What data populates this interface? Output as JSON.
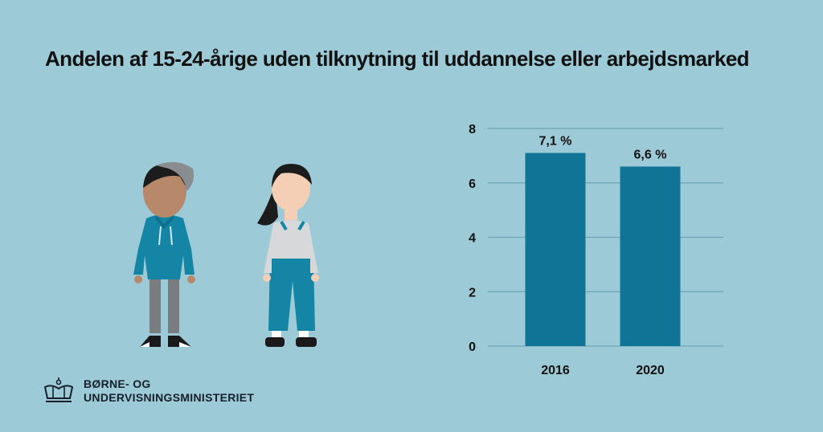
{
  "title": "Andelen af 15-24-årige uden tilknytning til uddannelse eller arbejdsmarked",
  "logo": {
    "line1": "BØRNE- OG",
    "line2": "UNDERVISNINGSMINISTERIET",
    "icon": "crown-icon"
  },
  "illustration": {
    "icons": [
      "young-man-figure-icon",
      "young-woman-figure-icon"
    ]
  },
  "colors": {
    "background": "#9ccad7",
    "bar": "#107496",
    "grid": "#6fa6b6",
    "text": "#111111"
  },
  "chart_data": {
    "type": "bar",
    "title": "Andelen af 15-24-årige uden tilknytning til uddannelse eller arbejdsmarked",
    "xlabel": "",
    "ylabel": "",
    "categories": [
      "2016",
      "2020"
    ],
    "values": [
      7.1,
      6.6
    ],
    "data_labels": [
      "7,1 %",
      "6,6 %"
    ],
    "yticks": [
      0,
      2,
      4,
      6,
      8
    ],
    "ylim": [
      0,
      8
    ],
    "grid": true,
    "legend": "none"
  }
}
